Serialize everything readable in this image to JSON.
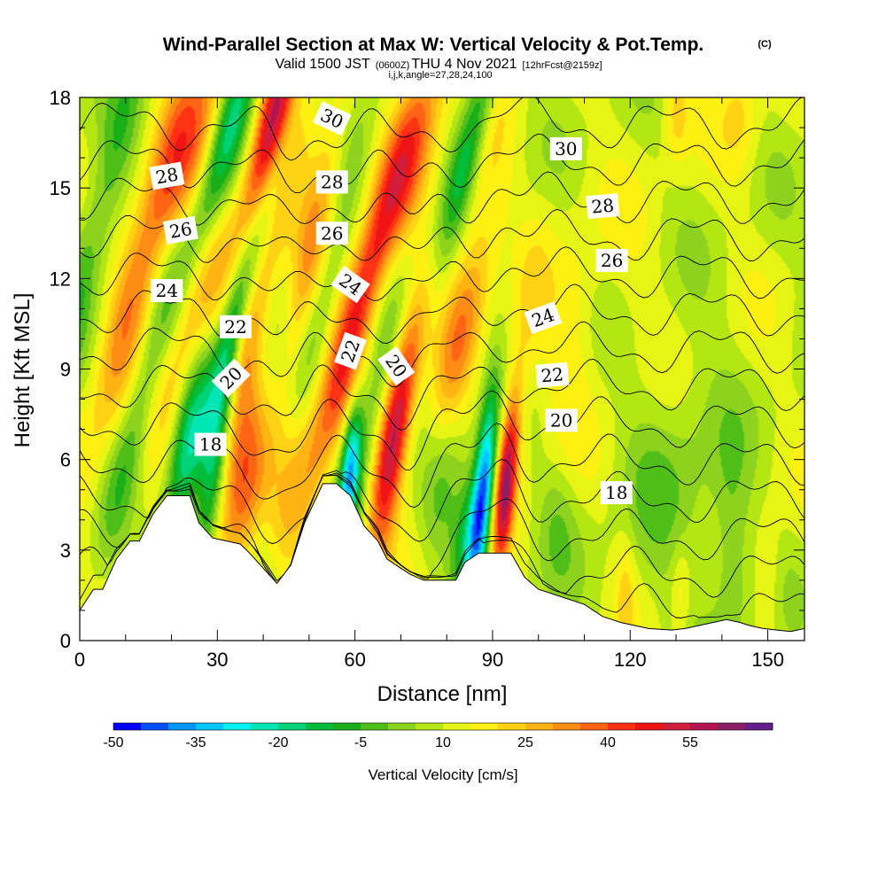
{
  "header": {
    "title": "Wind-Parallel Section at Max W: Vertical Velocity & Pot.Temp.",
    "copyright": "(C)",
    "valid_prefix": "Valid 1500 JST",
    "utc_time": "(0600Z)",
    "valid_date": "THU 4 Nov 2021",
    "forecast_info": "[12hrFcst@2159z]",
    "grid_params": "i,j,k,angle=27,28,24,100"
  },
  "chart_data": {
    "type": "heatmap",
    "xlabel": "Distance [nm]",
    "ylabel": "Height [Kft MSL]",
    "xlim": [
      0,
      158
    ],
    "ylim": [
      0,
      18
    ],
    "x_ticks": [
      0,
      30,
      60,
      90,
      120,
      150
    ],
    "x_tick_labels": [
      "0",
      "30",
      "60",
      "90",
      "120",
      "150"
    ],
    "y_ticks": [
      0,
      3,
      6,
      9,
      12,
      15,
      18
    ],
    "y_tick_labels": [
      "0",
      "3",
      "6",
      "9",
      "12",
      "15",
      "18"
    ],
    "colorbar": {
      "title": "Vertical Velocity [cm/s]",
      "levels": [
        -55,
        -50,
        -45,
        -40,
        -35,
        -30,
        -25,
        -20,
        -15,
        -10,
        -5,
        0,
        5,
        10,
        15,
        20,
        25,
        30,
        35,
        40,
        45,
        50,
        55,
        60,
        65
      ],
      "colors": [
        "#0000ff",
        "#0050ff",
        "#0096ff",
        "#00c8ff",
        "#00f0f0",
        "#00e6b4",
        "#00d278",
        "#00be3c",
        "#19af19",
        "#50be19",
        "#8cd21e",
        "#b4e614",
        "#e6f514",
        "#fff014",
        "#ffd214",
        "#ffb414",
        "#ff8c14",
        "#ff6414",
        "#ff3214",
        "#f01414",
        "#d21e3c",
        "#b41450",
        "#8c1e64",
        "#641e8c"
      ],
      "tick_labels": [
        "-50",
        "-35",
        "-20",
        "-5",
        "10",
        "25",
        "40",
        "55"
      ],
      "tick_values": [
        -50,
        -35,
        -20,
        -5,
        10,
        25,
        40,
        55
      ]
    },
    "terrain": {
      "distance_nm": [
        0,
        3,
        5,
        8,
        11,
        13,
        16,
        19,
        24,
        26,
        29,
        32,
        35,
        37,
        40,
        43,
        46,
        49,
        53,
        56,
        59,
        62,
        65,
        67,
        69,
        72,
        75,
        78,
        80,
        82,
        84,
        87,
        90,
        94,
        97,
        100,
        104,
        108,
        110,
        112,
        114,
        116,
        118,
        121,
        124,
        129,
        132,
        135,
        138,
        141,
        144,
        146,
        149,
        152,
        155,
        158
      ],
      "height_kft": [
        1.0,
        1.7,
        1.7,
        2.7,
        3.3,
        3.3,
        4.2,
        4.8,
        4.8,
        3.9,
        3.4,
        3.3,
        3.2,
        2.9,
        2.4,
        1.9,
        2.5,
        3.9,
        5.2,
        5.2,
        4.8,
        3.8,
        3.3,
        2.7,
        2.5,
        2.2,
        2.0,
        2.0,
        2.0,
        2.0,
        2.6,
        2.9,
        2.9,
        2.9,
        2.1,
        1.7,
        1.5,
        1.3,
        1.2,
        1.0,
        0.8,
        0.7,
        0.6,
        0.5,
        0.4,
        0.35,
        0.4,
        0.5,
        0.6,
        0.7,
        0.6,
        0.5,
        0.4,
        0.35,
        0.3,
        0.4
      ]
    },
    "w_cells": [
      {
        "x": 4,
        "z": 14.0,
        "sx": 3,
        "sz": 4.5,
        "w": -15,
        "tilt": 0.55
      },
      {
        "x": 9,
        "z": 10.5,
        "sx": 3,
        "sz": 4,
        "w": 12,
        "tilt": 0.5
      },
      {
        "x": 14,
        "z": 8.5,
        "sx": 2.5,
        "sz": 4,
        "w": -15,
        "tilt": 0.5
      },
      {
        "x": 20,
        "z": 15.5,
        "sx": 3.5,
        "sz": 4.5,
        "w": 25,
        "tilt": 0.55
      },
      {
        "x": 26,
        "z": 11.5,
        "sx": 3,
        "sz": 4,
        "w": 20,
        "tilt": 0.55
      },
      {
        "x": 23,
        "z": 6.5,
        "sx": 2.5,
        "sz": 2.5,
        "w": -20,
        "tilt": 0.3
      },
      {
        "x": 27,
        "z": 16.5,
        "sx": 3,
        "sz": 3,
        "w": 15,
        "tilt": 0.5
      },
      {
        "x": 33,
        "z": 17.0,
        "sx": 3,
        "sz": 3.5,
        "w": -35,
        "tilt": 0.6
      },
      {
        "x": 37,
        "z": 12.5,
        "sx": 3,
        "sz": 4.5,
        "w": -35,
        "tilt": 0.6
      },
      {
        "x": 30,
        "z": 6.5,
        "sx": 2,
        "sz": 4,
        "w": -30,
        "tilt": 0.3
      },
      {
        "x": 41,
        "z": 16.5,
        "sx": 2.5,
        "sz": 3.5,
        "w": 50,
        "tilt": 0.55
      },
      {
        "x": 42,
        "z": 14.0,
        "sx": 3,
        "sz": 4,
        "w": 30,
        "tilt": 0.55
      },
      {
        "x": 36,
        "z": 5.5,
        "sx": 3,
        "sz": 2.5,
        "w": 35,
        "tilt": 0.3
      },
      {
        "x": 33,
        "z": 7.5,
        "sx": 2.5,
        "sz": 2.5,
        "w": 15,
        "tilt": 0.4
      },
      {
        "x": 42,
        "z": 8.5,
        "sx": 2.5,
        "sz": 3.5,
        "w": -15,
        "tilt": 0.5
      },
      {
        "x": 45,
        "z": 12.5,
        "sx": 2.5,
        "sz": 4,
        "w": -12,
        "tilt": 0.55
      },
      {
        "x": 50,
        "z": 14.5,
        "sx": 3,
        "sz": 4,
        "w": 20,
        "tilt": 0.55
      },
      {
        "x": 47,
        "z": 10.5,
        "sx": 2.5,
        "sz": 3,
        "w": 18,
        "tilt": 0.5
      },
      {
        "x": 46,
        "z": 6.0,
        "sx": 3,
        "sz": 2.5,
        "w": 10,
        "tilt": 0.3
      },
      {
        "x": 54,
        "z": 12.0,
        "sx": 2.5,
        "sz": 4,
        "w": -10,
        "tilt": 0.5
      },
      {
        "x": 57,
        "z": 9.5,
        "sx": 3,
        "sz": 4,
        "w": 20,
        "tilt": 0.55
      },
      {
        "x": 59,
        "z": 5.8,
        "sx": 1.5,
        "sz": 1.5,
        "w": -40,
        "tilt": 0.2
      },
      {
        "x": 62,
        "z": 11.5,
        "sx": 2.5,
        "sz": 4,
        "w": 18,
        "tilt": 0.55
      },
      {
        "x": 64,
        "z": 7.5,
        "sx": 2.5,
        "sz": 3,
        "w": -15,
        "tilt": 0.45
      },
      {
        "x": 68,
        "z": 6.2,
        "sx": 2.5,
        "sz": 3,
        "w": 35,
        "tilt": 0.3
      },
      {
        "x": 71,
        "z": 8.5,
        "sx": 2.5,
        "sz": 3,
        "w": 15,
        "tilt": 0.45
      },
      {
        "x": 73,
        "z": 16.5,
        "sx": 3.5,
        "sz": 3.5,
        "w": 25,
        "tilt": 0.55
      },
      {
        "x": 78,
        "z": 11.0,
        "sx": 2.5,
        "sz": 4,
        "w": -12,
        "tilt": 0.5
      },
      {
        "x": 78,
        "z": 4.5,
        "sx": 3,
        "sz": 2,
        "w": -8,
        "tilt": 0.2
      },
      {
        "x": 83,
        "z": 13.5,
        "sx": 3,
        "sz": 4,
        "w": 15,
        "tilt": 0.55
      },
      {
        "x": 84,
        "z": 10.5,
        "sx": 3,
        "sz": 3,
        "w": 20,
        "tilt": 0.5
      },
      {
        "x": 86,
        "z": 17.0,
        "sx": 2.5,
        "sz": 3,
        "w": -25,
        "tilt": 0.55
      },
      {
        "x": 88,
        "z": 5.0,
        "sx": 1.6,
        "sz": 2.2,
        "w": -50,
        "tilt": 0.2
      },
      {
        "x": 85,
        "z": 3.3,
        "sx": 2.5,
        "sz": 1.5,
        "w": -25,
        "tilt": 0.2
      },
      {
        "x": 93,
        "z": 5.2,
        "sx": 1.5,
        "sz": 2,
        "w": 45,
        "tilt": 0.2
      },
      {
        "x": 96,
        "z": 9.0,
        "sx": 3,
        "sz": 3,
        "w": 10,
        "tilt": 0.3
      },
      {
        "x": 107,
        "z": 10.0,
        "sx": 4,
        "sz": 3,
        "w": 8,
        "tilt": 0.2
      },
      {
        "x": 120,
        "z": 11.0,
        "sx": 6,
        "sz": 3,
        "w": 3,
        "tilt": 0.0
      },
      {
        "x": 125,
        "z": 5.0,
        "sx": 6,
        "sz": 3,
        "w": -7,
        "tilt": 0.0
      },
      {
        "x": 135,
        "z": 6.0,
        "sx": 5,
        "sz": 3,
        "w": -5,
        "tilt": 0.0
      },
      {
        "x": 142,
        "z": 3.0,
        "sx": 3,
        "sz": 2.5,
        "w": -12,
        "tilt": 0.0
      },
      {
        "x": 150,
        "z": 2.0,
        "sx": 2,
        "sz": 1.5,
        "w": 8,
        "tilt": 0.0
      },
      {
        "x": 119,
        "z": 1.5,
        "sx": 1.5,
        "sz": 1.5,
        "w": 10,
        "tilt": 0.0
      },
      {
        "x": 131,
        "z": 1.5,
        "sx": 1.5,
        "sz": 1.2,
        "w": 10,
        "tilt": 0.0
      },
      {
        "x": 104,
        "z": 4.0,
        "sx": 3,
        "sz": 1.5,
        "w": -8,
        "tilt": 0.0
      },
      {
        "x": 144,
        "z": 17.5,
        "sx": 3,
        "sz": 1.5,
        "w": 10,
        "tilt": 0.0
      },
      {
        "x": 130,
        "z": 17.5,
        "sx": 2,
        "sz": 1.2,
        "w": 12,
        "tilt": 0.0
      }
    ],
    "theta_contours": {
      "base_levels": [
        18,
        19,
        20,
        21,
        22,
        23,
        24,
        25,
        26,
        27,
        28,
        29,
        30,
        31
      ],
      "labels": [
        {
          "text": "18",
          "x": 28.5,
          "z": 6.5,
          "angle": 0
        },
        {
          "text": "20",
          "x": 33,
          "z": 8.7,
          "angle": -45
        },
        {
          "text": "22",
          "x": 34,
          "z": 10.4,
          "angle": 0
        },
        {
          "text": "24",
          "x": 19,
          "z": 11.6,
          "angle": 0
        },
        {
          "text": "26",
          "x": 22,
          "z": 13.6,
          "angle": -10
        },
        {
          "text": "28",
          "x": 19,
          "z": 15.4,
          "angle": -10
        },
        {
          "text": "30",
          "x": 55,
          "z": 17.3,
          "angle": 25
        },
        {
          "text": "28",
          "x": 55,
          "z": 15.2,
          "angle": 0
        },
        {
          "text": "26",
          "x": 55,
          "z": 13.5,
          "angle": 0
        },
        {
          "text": "24",
          "x": 59,
          "z": 11.8,
          "angle": 35
        },
        {
          "text": "22",
          "x": 59,
          "z": 9.6,
          "angle": -70
        },
        {
          "text": "20",
          "x": 69,
          "z": 9.1,
          "angle": 55
        },
        {
          "text": "24",
          "x": 101,
          "z": 10.7,
          "angle": -20
        },
        {
          "text": "22",
          "x": 103,
          "z": 8.8,
          "angle": -5
        },
        {
          "text": "20",
          "x": 105,
          "z": 7.3,
          "angle": 0
        },
        {
          "text": "18",
          "x": 117,
          "z": 4.9,
          "angle": 0
        },
        {
          "text": "30",
          "x": 106,
          "z": 16.3,
          "angle": 0
        },
        {
          "text": "28",
          "x": 114,
          "z": 14.4,
          "angle": -5
        },
        {
          "text": "26",
          "x": 116,
          "z": 12.6,
          "angle": 0
        }
      ]
    }
  }
}
